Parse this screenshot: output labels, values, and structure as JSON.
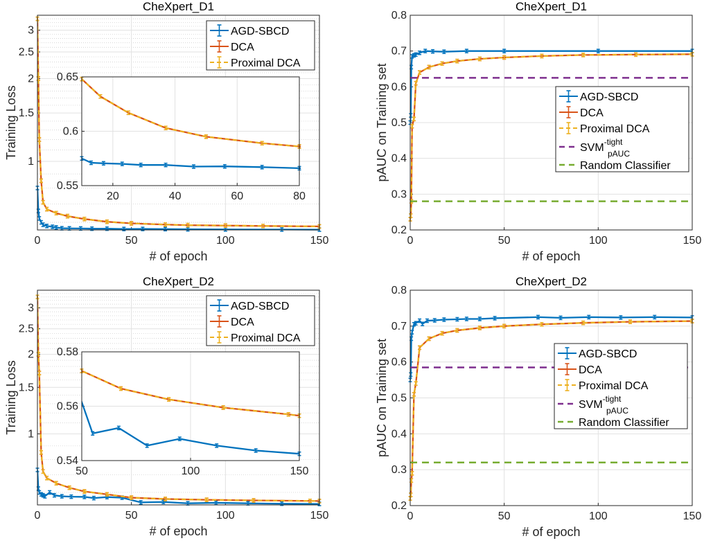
{
  "colors": {
    "agd": "#0072BD",
    "dca": "#D95319",
    "prox": "#EDB120",
    "svm": "#7E2F8E",
    "random": "#77AC30"
  },
  "legend_labels": {
    "agd": "AGD-SBCD",
    "dca": "DCA",
    "prox": "Proximal DCA",
    "svm": "SVM",
    "svm_sup": "-tight",
    "svm_sub": "pAUC",
    "random": "Random Classifier"
  },
  "chart_data": [
    {
      "type": "line",
      "title": "CheXpert_D1",
      "xlabel": "# of epoch",
      "ylabel": "Training Loss",
      "yscale": "log",
      "xlim": [
        0,
        150
      ],
      "ylim": [
        0.563,
        3.4
      ],
      "grid": true,
      "legend": "top-right",
      "xticks": [
        0,
        50,
        100,
        150
      ],
      "xtick_labels": [
        "0",
        "50",
        "100",
        "150"
      ],
      "yticks": [
        1,
        1.5,
        2,
        2.5,
        3
      ],
      "ytick_labels": [
        "1",
        "1.5",
        "2",
        "2.5",
        "3"
      ],
      "series": [
        {
          "name": "AGD-SBCD",
          "key": "agd",
          "x": [
            0,
            0.5,
            1,
            2,
            3,
            5,
            8,
            10,
            13,
            17,
            23,
            29,
            37,
            46,
            56,
            68,
            80,
            100,
            130,
            150
          ],
          "y": [
            0.8,
            0.66,
            0.62,
            0.6,
            0.588,
            0.582,
            0.578,
            0.575,
            0.571,
            0.5705,
            0.57,
            0.569,
            0.569,
            0.5675,
            0.5677,
            0.567,
            0.566,
            0.5655,
            0.565,
            0.5645
          ]
        },
        {
          "name": "DCA",
          "key": "dca",
          "x": [
            0,
            0.5,
            1,
            2,
            3,
            5,
            10,
            16,
            25,
            37,
            50,
            68,
            80,
            100,
            120,
            150
          ],
          "y": [
            3.3,
            2.0,
            1.2,
            0.85,
            0.71,
            0.67,
            0.648,
            0.632,
            0.617,
            0.603,
            0.595,
            0.589,
            0.586,
            0.584,
            0.582,
            0.58
          ]
        },
        {
          "name": "Proximal DCA",
          "key": "prox",
          "x": [
            0,
            0.5,
            1,
            2,
            3,
            5,
            10,
            16,
            25,
            37,
            50,
            68,
            80,
            100,
            120,
            150
          ],
          "y": [
            3.3,
            2.0,
            1.2,
            0.85,
            0.71,
            0.67,
            0.648,
            0.632,
            0.617,
            0.603,
            0.595,
            0.589,
            0.586,
            0.584,
            0.582,
            0.58
          ]
        }
      ],
      "inset": {
        "xlim": [
          10,
          80
        ],
        "ylim": [
          0.55,
          0.65
        ],
        "xticks": [
          20,
          40,
          60,
          80
        ],
        "xtick_labels": [
          "20",
          "40",
          "60",
          "80"
        ],
        "yticks": [
          0.55,
          0.6,
          0.65
        ],
        "ytick_labels": [
          "0.55",
          "0.6",
          "0.65"
        ]
      }
    },
    {
      "type": "line",
      "title": "CheXpert_D1",
      "xlabel": "# of epoch",
      "ylabel": "pAUC on Training set",
      "yscale": "linear",
      "xlim": [
        0,
        150
      ],
      "ylim": [
        0.2,
        0.8
      ],
      "grid": true,
      "legend": "right",
      "xticks": [
        0,
        50,
        100,
        150
      ],
      "xtick_labels": [
        "0",
        "50",
        "100",
        "150"
      ],
      "yticks": [
        0.2,
        0.3,
        0.4,
        0.5,
        0.6,
        0.7,
        0.8
      ],
      "ytick_labels": [
        "0.2",
        "0.3",
        "0.4",
        "0.5",
        "0.6",
        "0.7",
        "0.8"
      ],
      "series": [
        {
          "name": "AGD-SBCD",
          "key": "agd",
          "x": [
            0,
            0.3,
            0.6,
            1,
            2,
            3,
            5,
            8,
            12,
            18,
            30,
            50,
            100,
            150
          ],
          "y": [
            0.5,
            0.52,
            0.655,
            0.685,
            0.688,
            0.69,
            0.695,
            0.7,
            0.699,
            0.698,
            0.7,
            0.7,
            0.7,
            0.7
          ]
        },
        {
          "name": "DCA",
          "key": "dca",
          "x": [
            0,
            0.3,
            0.6,
            1,
            2,
            3,
            5,
            10,
            17,
            25,
            37,
            50,
            70,
            92,
            120,
            150
          ],
          "y": [
            0.23,
            0.24,
            0.28,
            0.49,
            0.51,
            0.61,
            0.64,
            0.655,
            0.665,
            0.672,
            0.678,
            0.682,
            0.686,
            0.689,
            0.69,
            0.691
          ]
        },
        {
          "name": "Proximal DCA",
          "key": "prox",
          "x": [
            0,
            0.3,
            0.6,
            1,
            2,
            3,
            5,
            10,
            17,
            25,
            37,
            50,
            70,
            92,
            120,
            150
          ],
          "y": [
            0.23,
            0.24,
            0.28,
            0.49,
            0.51,
            0.61,
            0.64,
            0.655,
            0.665,
            0.672,
            0.678,
            0.682,
            0.686,
            0.689,
            0.69,
            0.691
          ]
        },
        {
          "name": "SVM-tight pAUC",
          "key": "svm",
          "constant": 0.625
        },
        {
          "name": "Random Classifier",
          "key": "random",
          "constant": 0.28
        }
      ]
    },
    {
      "type": "line",
      "title": "CheXpert_D2",
      "xlabel": "# of epoch",
      "ylabel": "Training Loss",
      "yscale": "log",
      "xlim": [
        0,
        150
      ],
      "ylim": [
        0.538,
        3.5
      ],
      "grid": true,
      "legend": "top-right",
      "xticks": [
        0,
        50,
        100,
        150
      ],
      "xtick_labels": [
        "0",
        "50",
        "100",
        "150"
      ],
      "yticks": [
        1,
        1.5,
        2,
        2.5,
        3
      ],
      "ytick_labels": [
        "1",
        "1.5",
        "2",
        "2.5",
        "3"
      ],
      "series": [
        {
          "name": "AGD-SBCD",
          "key": "agd",
          "x": [
            0,
            0.5,
            1,
            2,
            3,
            4,
            6.5,
            9,
            13,
            18,
            25,
            30,
            37,
            45,
            55,
            67,
            80,
            95,
            112,
            130,
            150
          ],
          "y": [
            0.73,
            0.62,
            0.6,
            0.59,
            0.585,
            0.58,
            0.6,
            0.585,
            0.58,
            0.578,
            0.577,
            0.571,
            0.576,
            0.573,
            0.55,
            0.552,
            0.5455,
            0.548,
            0.5455,
            0.5437,
            0.5425
          ]
        },
        {
          "name": "DCA",
          "key": "dca",
          "x": [
            0,
            0.5,
            1,
            2,
            3,
            5,
            10,
            17,
            25,
            37,
            50,
            68,
            90,
            115,
            145,
            150
          ],
          "y": [
            3.3,
            2.0,
            1.7,
            0.85,
            0.72,
            0.68,
            0.65,
            0.625,
            0.605,
            0.59,
            0.573,
            0.5665,
            0.5625,
            0.5595,
            0.557,
            0.5565
          ]
        },
        {
          "name": "Proximal DCA",
          "key": "prox",
          "x": [
            0,
            0.5,
            1,
            2,
            3,
            5,
            10,
            17,
            25,
            37,
            50,
            68,
            90,
            115,
            145,
            150
          ],
          "y": [
            3.3,
            2.0,
            1.7,
            0.85,
            0.72,
            0.68,
            0.65,
            0.625,
            0.605,
            0.59,
            0.573,
            0.5665,
            0.5625,
            0.5595,
            0.557,
            0.5565
          ]
        }
      ],
      "inset": {
        "xlim": [
          50,
          150
        ],
        "ylim": [
          0.54,
          0.58
        ],
        "xticks": [
          50,
          100,
          150
        ],
        "xtick_labels": [
          "50",
          "100",
          "150"
        ],
        "yticks": [
          0.54,
          0.56,
          0.58
        ],
        "ytick_labels": [
          "0.54",
          "0.56",
          "0.58"
        ]
      }
    },
    {
      "type": "line",
      "title": "CheXpert_D2",
      "xlabel": "# of epoch",
      "ylabel": "pAUC on Training set",
      "yscale": "linear",
      "xlim": [
        0,
        150
      ],
      "ylim": [
        0.2,
        0.8
      ],
      "grid": true,
      "legend": "right",
      "xticks": [
        0,
        50,
        100,
        150
      ],
      "xtick_labels": [
        "0",
        "50",
        "100",
        "150"
      ],
      "yticks": [
        0.2,
        0.3,
        0.4,
        0.5,
        0.6,
        0.7,
        0.8
      ],
      "ytick_labels": [
        "0.2",
        "0.3",
        "0.4",
        "0.5",
        "0.6",
        "0.7",
        "0.8"
      ],
      "series": [
        {
          "name": "AGD-SBCD",
          "key": "agd",
          "x": [
            0,
            0.3,
            0.6,
            1,
            2,
            3,
            5,
            6.5,
            9,
            13,
            18,
            25,
            30,
            37,
            45,
            68,
            80,
            95,
            112,
            130,
            150
          ],
          "y": [
            0.55,
            0.565,
            0.665,
            0.683,
            0.705,
            0.708,
            0.715,
            0.706,
            0.715,
            0.716,
            0.718,
            0.719,
            0.72,
            0.72,
            0.722,
            0.725,
            0.723,
            0.725,
            0.724,
            0.725,
            0.724
          ]
        },
        {
          "name": "DCA",
          "key": "dca",
          "x": [
            0,
            0.3,
            0.6,
            1,
            2,
            3,
            5,
            10,
            17,
            25,
            37,
            50,
            70,
            92,
            117,
            150
          ],
          "y": [
            0.22,
            0.23,
            0.27,
            0.29,
            0.51,
            0.54,
            0.64,
            0.665,
            0.68,
            0.688,
            0.695,
            0.7,
            0.705,
            0.709,
            0.712,
            0.714
          ]
        },
        {
          "name": "Proximal DCA",
          "key": "prox",
          "x": [
            0,
            0.3,
            0.6,
            1,
            2,
            3,
            5,
            10,
            17,
            25,
            37,
            50,
            70,
            92,
            117,
            150
          ],
          "y": [
            0.22,
            0.23,
            0.27,
            0.29,
            0.51,
            0.54,
            0.64,
            0.665,
            0.68,
            0.688,
            0.695,
            0.7,
            0.705,
            0.709,
            0.712,
            0.714
          ]
        },
        {
          "name": "SVM-tight pAUC",
          "key": "svm",
          "constant": 0.585
        },
        {
          "name": "Random Classifier",
          "key": "random",
          "constant": 0.32
        }
      ]
    }
  ]
}
